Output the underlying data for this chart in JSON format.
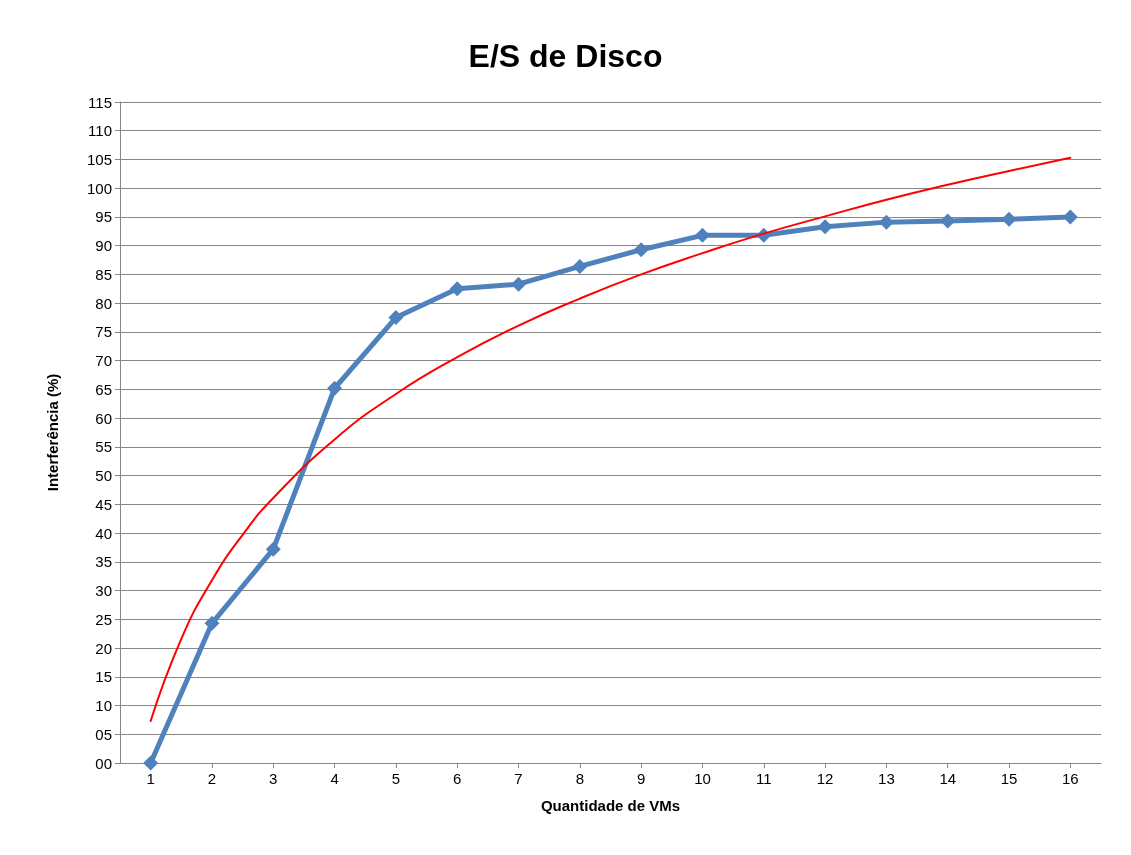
{
  "chart_data": {
    "type": "line",
    "title": "E/S de Disco",
    "xlabel": "Quantidade de VMs",
    "ylabel": "Interferência (%)",
    "xlim": [
      0.5,
      16.5
    ],
    "xticks": [
      1,
      2,
      3,
      4,
      5,
      6,
      7,
      8,
      9,
      10,
      11,
      12,
      13,
      14,
      15,
      16
    ],
    "ylim": [
      0,
      115
    ],
    "yticks": [
      {
        "value": 0,
        "label": "00"
      },
      {
        "value": 5,
        "label": "05"
      },
      10,
      15,
      20,
      25,
      30,
      35,
      40,
      45,
      50,
      55,
      60,
      65,
      70,
      75,
      80,
      85,
      90,
      95,
      100,
      105,
      110,
      115
    ],
    "grid": "y",
    "marker": "diamond",
    "line_style": "solid",
    "series": [
      {
        "color": "#4f81bd",
        "x": [
          1,
          2,
          3,
          4,
          5,
          6,
          7,
          8,
          9,
          10,
          11,
          12,
          13,
          14,
          15,
          16
        ],
        "values": [
          0,
          24.3,
          37.2,
          65.2,
          77.5,
          82.5,
          83.3,
          86.4,
          89.3,
          91.8,
          91.8,
          93.3,
          94.1,
          94.3,
          94.6,
          95.0
        ]
      },
      {
        "type": "line",
        "color": "#ff0000",
        "marker": "none",
        "x": [
          1,
          1.5,
          2,
          2.5,
          3,
          4,
          5,
          6,
          7,
          8,
          9,
          10,
          11,
          12,
          13,
          14,
          15,
          16
        ],
        "values": [
          7.3,
          21.6,
          31.8,
          39.7,
          46.1,
          56.3,
          64.2,
          70.6,
          76.1,
          80.8,
          85.0,
          88.7,
          92.1,
          95.1,
          98.0,
          100.6,
          103.0,
          105.3
        ]
      }
    ]
  }
}
